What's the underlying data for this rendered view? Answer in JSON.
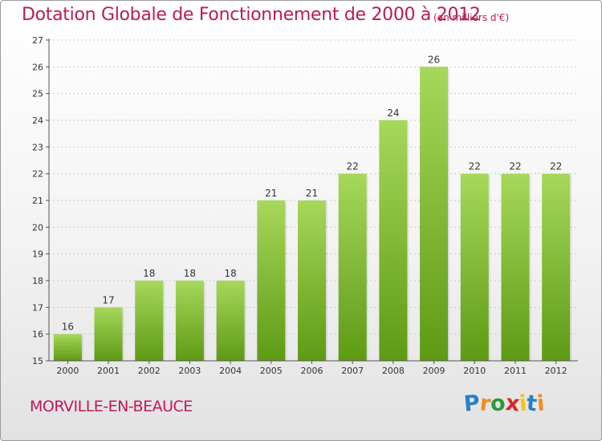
{
  "chart_data": {
    "type": "bar",
    "title": "Dotation Globale de Fonctionnement de 2000 à 2012",
    "subtitle": "(en milliers d'€)",
    "categories": [
      "2000",
      "2001",
      "2002",
      "2003",
      "2004",
      "2005",
      "2006",
      "2007",
      "2008",
      "2009",
      "2010",
      "2011",
      "2012"
    ],
    "values": [
      16,
      17,
      18,
      18,
      18,
      21,
      21,
      22,
      24,
      26,
      22,
      22,
      22
    ],
    "ylim": [
      15,
      27
    ],
    "yticks": [
      15,
      16,
      17,
      18,
      19,
      20,
      21,
      22,
      23,
      24,
      25,
      26,
      27
    ],
    "xlabel": "",
    "ylabel": "",
    "grid": true
  },
  "commune": "MORVILLE-EN-BEAUCE",
  "logo": {
    "letters": [
      "P",
      "r",
      "o",
      "x",
      "i",
      "t",
      "i"
    ],
    "colors": [
      "#2b7fc8",
      "#f28c1f",
      "#2b9a3c",
      "#d9262b",
      "#f2c11f",
      "#2b7fc8",
      "#f28c1f"
    ]
  },
  "colors": {
    "bar_top": "#a6d85a",
    "bar_bottom": "#5e9a14",
    "title": "#b81c52"
  }
}
